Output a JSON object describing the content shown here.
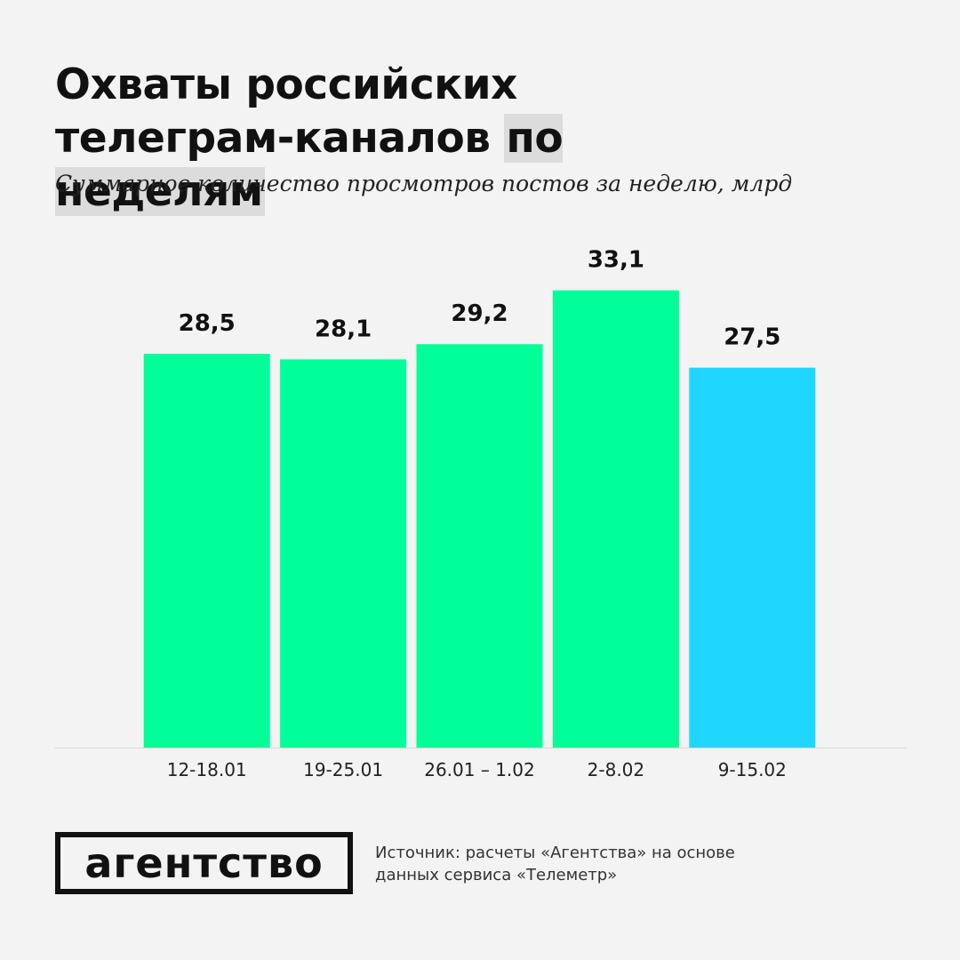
{
  "chart_data": {
    "type": "bar",
    "title": "Охваты российских телеграм-каналов",
    "title_highlight": "по неделям",
    "subtitle": "Суммарное количество просмотров постов за неделю, млрд",
    "categories": [
      "12-18.01",
      "19-25.01",
      "26.01 – 1.02",
      "2-8.02",
      "9-15.02"
    ],
    "values": [
      28.5,
      28.1,
      29.2,
      33.1,
      27.5
    ],
    "value_labels": [
      "28,5",
      "28,1",
      "29,2",
      "33,1",
      "27,5"
    ],
    "colors": [
      "#00ff99",
      "#00ff99",
      "#00ff99",
      "#00ff99",
      "#1ed6ff"
    ],
    "ylim": [
      0,
      34
    ],
    "grid": false
  },
  "logo": "агентство",
  "source": "Источник: расчеты «Агентства» на основе данных сервиса «Телеметр»"
}
